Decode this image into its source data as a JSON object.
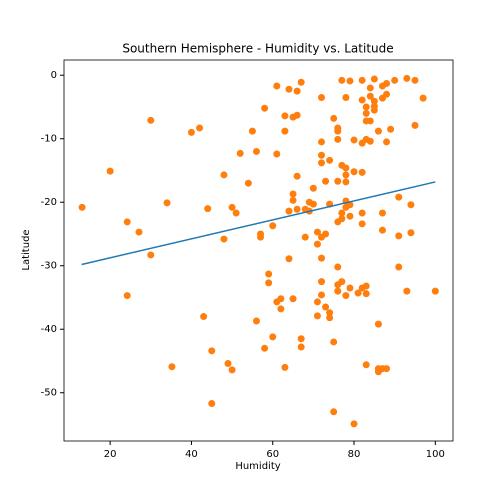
{
  "chart_data": {
    "type": "scatter",
    "title": "Southern Hemisphere - Humidity vs. Latitude",
    "x_label": "Humidity",
    "y_label": "Latitude",
    "xlim": [
      8.65,
      104.35
    ],
    "ylim": [
      -57.6,
      2.4
    ],
    "xticks": [
      20,
      40,
      60,
      80,
      100
    ],
    "yticks": [
      0,
      -10,
      -20,
      -30,
      -40,
      -50
    ],
    "grid": false,
    "series": [
      {
        "color": "#ff7f0e",
        "x": [
          13.1,
          20,
          24.2,
          24.2,
          27.1,
          30,
          30,
          34,
          35.2,
          40,
          42,
          43,
          44,
          45,
          45,
          48,
          48,
          49,
          50,
          50,
          51,
          52,
          54,
          55,
          56,
          56,
          57,
          57,
          58,
          58,
          59,
          59,
          60,
          60,
          61,
          61,
          61,
          62,
          62,
          63,
          63,
          63,
          64,
          64,
          64,
          65,
          65,
          65,
          65,
          66,
          66,
          66,
          66,
          67,
          67,
          67,
          68,
          68,
          69,
          69,
          70,
          70,
          71,
          71,
          71,
          71,
          72,
          72,
          72,
          72,
          72,
          72,
          72,
          72,
          73,
          73,
          73,
          74,
          74,
          74,
          74,
          75,
          75,
          75,
          76,
          76,
          76,
          76,
          76,
          76,
          76,
          76,
          77,
          77,
          77,
          77,
          77,
          78,
          78,
          78,
          78,
          78,
          78,
          78,
          79,
          79,
          79,
          79,
          80,
          80,
          80,
          81,
          82,
          82,
          82,
          82,
          82,
          82,
          82,
          83,
          83,
          83,
          83,
          83,
          83,
          83,
          84,
          84,
          84,
          84,
          85,
          85,
          85,
          85,
          86,
          86,
          86,
          86,
          87,
          87,
          87,
          87,
          87,
          88,
          88,
          88,
          88,
          89,
          90,
          91,
          91,
          91,
          93,
          93,
          94,
          94,
          95,
          95,
          97,
          100
        ],
        "values": [
          -20.8,
          -15.1,
          -23.1,
          -34.7,
          -24.7,
          -7.1,
          -28.3,
          -20.1,
          -45.9,
          -9,
          -8.3,
          -38,
          -21,
          -43.4,
          -51.7,
          -15.7,
          -25.8,
          -45.4,
          -20.8,
          -46.4,
          -21.7,
          -12.3,
          -17,
          -8.8,
          -12,
          -38.7,
          -25,
          -25.5,
          -5.2,
          -43,
          -31.3,
          -32.7,
          -23.7,
          -41.2,
          -1.7,
          -12.4,
          -35.7,
          -35.2,
          -36.8,
          -6.4,
          -8.8,
          -46,
          -2.2,
          -21.4,
          -28.9,
          -6.6,
          -18.7,
          -19.7,
          -35.2,
          -2.5,
          -6.3,
          -15.9,
          -21.1,
          -1.1,
          -41.5,
          -42.8,
          -21.1,
          -25.5,
          -20,
          -21.4,
          -17.8,
          -20.3,
          -24.7,
          -26.6,
          -35.7,
          -37.9,
          -3.5,
          -10.5,
          -12.6,
          -13.8,
          -25.5,
          -28.8,
          -32.5,
          -34.6,
          -16.7,
          -25,
          -36.5,
          -13.4,
          -20.3,
          -37.4,
          -38.2,
          -6.8,
          -42,
          -53,
          -8.3,
          -8.8,
          -10.1,
          -16.7,
          -23.1,
          -30.2,
          -33,
          -34,
          -0.8,
          -14.2,
          -21.7,
          -22.6,
          -32.5,
          -3.5,
          -14.6,
          -15.7,
          -16.8,
          -19.8,
          -20.8,
          -34.7,
          -0.9,
          -20.4,
          -22.2,
          -33.5,
          -10.2,
          -15.2,
          -54.9,
          -34.3,
          -0.8,
          -3.9,
          -10.7,
          -15.3,
          -21.7,
          -23.4,
          -33.5,
          -5,
          -6,
          -7.2,
          -10.1,
          -33.2,
          -34.4,
          -45.6,
          -2,
          -3.3,
          -7.2,
          -10.4,
          -0.6,
          -4.1,
          -4.9,
          -5.5,
          -8.8,
          -39.2,
          -46.2,
          -46.7,
          -1.7,
          -3.6,
          -21.7,
          -24.4,
          -46.2,
          -1.3,
          -3,
          -10.5,
          -46.2,
          -8.5,
          -0.8,
          -19.2,
          -25.3,
          -30.2,
          -0.5,
          -34,
          -20.4,
          -24.8,
          -0.8,
          -7.9,
          -3.6,
          -34
        ]
      }
    ],
    "regression": {
      "color": "#1f77b4",
      "x": [
        13,
        100
      ],
      "values": [
        -29.8,
        -16.8
      ]
    }
  }
}
